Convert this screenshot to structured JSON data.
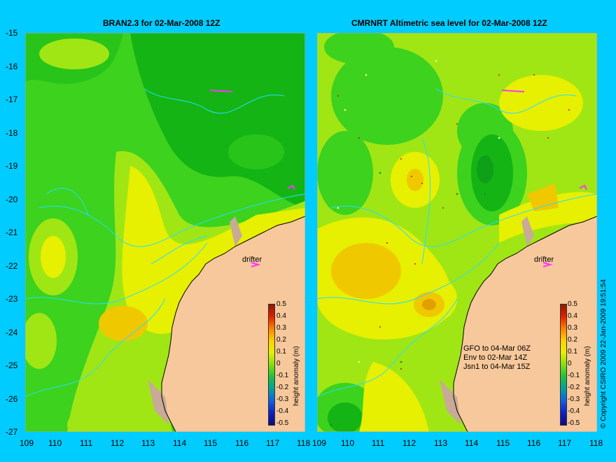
{
  "left_panel": {
    "title": "BRAN2.3 for 02-Mar-2008 12Z",
    "drifter_label": "drifter",
    "colorbar_title": "height anomaly (m)"
  },
  "right_panel": {
    "title": "CMRNRT Altimetric sea level  for 02-Mar-2008 12Z",
    "drifter_label": "drifter",
    "colorbar_title": "height anomaly (m)",
    "notes": [
      "GFO to 04-Mar 06Z",
      "Env to 02-Mar 14Z",
      "Jsn1 to 04-Mar 15Z"
    ]
  },
  "copyright": "© Copyright CSIRO 2009  22-Jan-2009 19:51:54",
  "y_ticks": [
    "-15",
    "-16",
    "-17",
    "-18",
    "-19",
    "-20",
    "-21",
    "-22",
    "-23",
    "-24",
    "-25",
    "-26",
    "-27"
  ],
  "x_ticks": [
    "109",
    "110",
    "111",
    "112",
    "113",
    "114",
    "115",
    "116",
    "117",
    "118"
  ],
  "colorbar_ticks": [
    "0.5",
    "0.4",
    "0.3",
    "0.2",
    "0.1",
    "0",
    "-0.1",
    "-0.2",
    "-0.3",
    "-0.4",
    "-0.5"
  ],
  "colors": {
    "background": "#00ccff",
    "land": "#f7c89b",
    "green_dark": "#14b414",
    "green": "#3cd21e",
    "yellow_green": "#a0e614",
    "yellow": "#e6f000",
    "orange": "#f0c800",
    "drifter": "#ff33ff"
  }
}
